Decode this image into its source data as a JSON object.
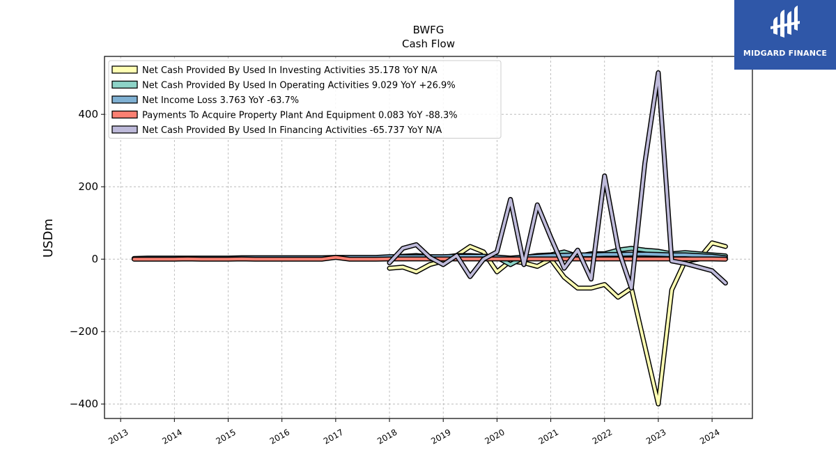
{
  "brand": {
    "name": "MIDGARD FINANCE",
    "bg_color": "#2f57a8"
  },
  "chart_data": {
    "type": "line",
    "title": "BWFG",
    "subtitle": "Cash Flow",
    "xlabel": "",
    "ylabel": "USDm",
    "xlim": [
      2012.7,
      2024.75
    ],
    "ylim": [
      -440,
      560
    ],
    "yticks": [
      -400,
      -200,
      0,
      200,
      400
    ],
    "ytick_labels": [
      "−400",
      "−200",
      "0",
      "200",
      "400"
    ],
    "xticks": [
      "2013",
      "2014",
      "2015",
      "2016",
      "2017",
      "2018",
      "2019",
      "2020",
      "2021",
      "2022",
      "2023",
      "2024"
    ],
    "grid": true,
    "legend_position": "top-left",
    "series": [
      {
        "name": "Net Cash Provided By Used In Investing Activities",
        "legend_label": "Net Cash Provided By Used In Investing Activities  35.178 YoY N/A",
        "color": "#ffffb3",
        "x": [
          2018.0,
          2018.25,
          2018.5,
          2018.75,
          2019.0,
          2019.25,
          2019.5,
          2019.75,
          2020.0,
          2020.25,
          2020.5,
          2020.75,
          2021.0,
          2021.25,
          2021.5,
          2021.75,
          2022.0,
          2022.25,
          2022.5,
          2022.75,
          2023.0,
          2023.25,
          2023.5,
          2023.75,
          2024.0,
          2024.25
        ],
        "y": [
          -25,
          -22,
          -35,
          -15,
          -5,
          10,
          35,
          20,
          -35,
          -5,
          -10,
          -20,
          0,
          -50,
          -80,
          -80,
          -70,
          -105,
          -80,
          -240,
          -400,
          -85,
          -5,
          0,
          45,
          35
        ]
      },
      {
        "name": "Net Cash Provided By Used In Operating Activities",
        "legend_label": "Net Cash Provided By Used In Operating Activities  9.029 YoY +26.9%",
        "color": "#8dd3c7",
        "x": [
          2018.0,
          2018.25,
          2018.5,
          2018.75,
          2019.0,
          2019.25,
          2019.5,
          2019.75,
          2020.0,
          2020.25,
          2020.5,
          2020.75,
          2021.0,
          2021.25,
          2021.5,
          2021.75,
          2022.0,
          2022.25,
          2022.5,
          2022.75,
          2023.0,
          2023.25,
          2023.5,
          2023.75,
          2024.0,
          2024.25
        ],
        "y": [
          5,
          8,
          10,
          7,
          5,
          10,
          10,
          8,
          5,
          -15,
          5,
          10,
          12,
          20,
          8,
          15,
          15,
          25,
          30,
          25,
          22,
          15,
          18,
          15,
          12,
          9
        ]
      },
      {
        "name": "Net Income Loss",
        "legend_label": "Net Income Loss  3.763 YoY -63.7%",
        "color": "#80b1d3",
        "x": [
          2013.25,
          2013.5,
          2013.75,
          2014.0,
          2014.25,
          2014.5,
          2014.75,
          2015.0,
          2015.25,
          2015.5,
          2015.75,
          2016.0,
          2016.25,
          2016.5,
          2016.75,
          2017.0,
          2017.25,
          2017.5,
          2017.75,
          2018.0,
          2018.25,
          2018.5,
          2018.75,
          2019.0,
          2019.25,
          2019.5,
          2019.75,
          2020.0,
          2020.25,
          2020.5,
          2020.75,
          2021.0,
          2021.25,
          2021.5,
          2021.75,
          2022.0,
          2022.25,
          2022.5,
          2022.75,
          2023.0,
          2023.25,
          2023.5,
          2023.75,
          2024.0,
          2024.25
        ],
        "y": [
          2,
          3,
          3,
          3,
          3,
          3,
          3,
          3,
          4,
          4,
          4,
          4,
          4,
          4,
          4,
          5,
          5,
          5,
          5,
          7,
          7,
          7,
          7,
          7,
          8,
          8,
          8,
          6,
          3,
          6,
          8,
          10,
          11,
          12,
          12,
          13,
          13,
          14,
          14,
          13,
          12,
          12,
          10,
          8,
          4
        ]
      },
      {
        "name": "Payments To Acquire Property Plant And Equipment",
        "legend_label": "Payments To Acquire Property Plant And Equipment  0.083 YoY -88.3%",
        "color": "#fb8072",
        "x": [
          2013.25,
          2013.5,
          2013.75,
          2014.0,
          2014.25,
          2014.5,
          2014.75,
          2015.0,
          2015.25,
          2015.5,
          2015.75,
          2016.0,
          2016.25,
          2016.5,
          2016.75,
          2017.0,
          2017.25,
          2017.5,
          2017.75,
          2018.0,
          2018.25,
          2018.5,
          2018.75,
          2019.0,
          2019.25,
          2019.5,
          2019.75,
          2020.0,
          2020.25,
          2020.5,
          2020.75,
          2021.0,
          2021.25,
          2021.5,
          2021.75,
          2022.0,
          2022.25,
          2022.5,
          2022.75,
          2023.0,
          2023.25,
          2023.5,
          2023.75,
          2024.0,
          2024.25
        ],
        "y": [
          0,
          0,
          0,
          0,
          0.5,
          0,
          0,
          0,
          0.5,
          0,
          0,
          0,
          0,
          0,
          0,
          5,
          0,
          0,
          0,
          0.5,
          0.5,
          0.5,
          0.5,
          0.5,
          0.5,
          0.5,
          0.5,
          0.5,
          0.5,
          0.5,
          0.5,
          0.5,
          0.5,
          0.5,
          0.5,
          0.5,
          0.5,
          0.5,
          0.5,
          0.5,
          0.5,
          0.5,
          0.5,
          0.5,
          0.083
        ]
      },
      {
        "name": "Net Cash Provided By Used In Financing Activities",
        "legend_label": "Net Cash Provided By Used In Financing Activities  -65.737 YoY N/A",
        "color": "#bebada",
        "x": [
          2018.0,
          2018.25,
          2018.5,
          2018.75,
          2019.0,
          2019.25,
          2019.5,
          2019.75,
          2020.0,
          2020.25,
          2020.5,
          2020.75,
          2021.0,
          2021.25,
          2021.5,
          2021.75,
          2022.0,
          2022.25,
          2022.5,
          2022.75,
          2023.0,
          2023.25,
          2023.5,
          2023.75,
          2024.0,
          2024.25
        ],
        "y": [
          -10,
          30,
          40,
          5,
          -15,
          10,
          -48,
          0,
          20,
          165,
          -15,
          150,
          60,
          -25,
          25,
          -55,
          230,
          30,
          -80,
          265,
          515,
          -5,
          -12,
          -22,
          -32,
          -66
        ]
      }
    ]
  }
}
